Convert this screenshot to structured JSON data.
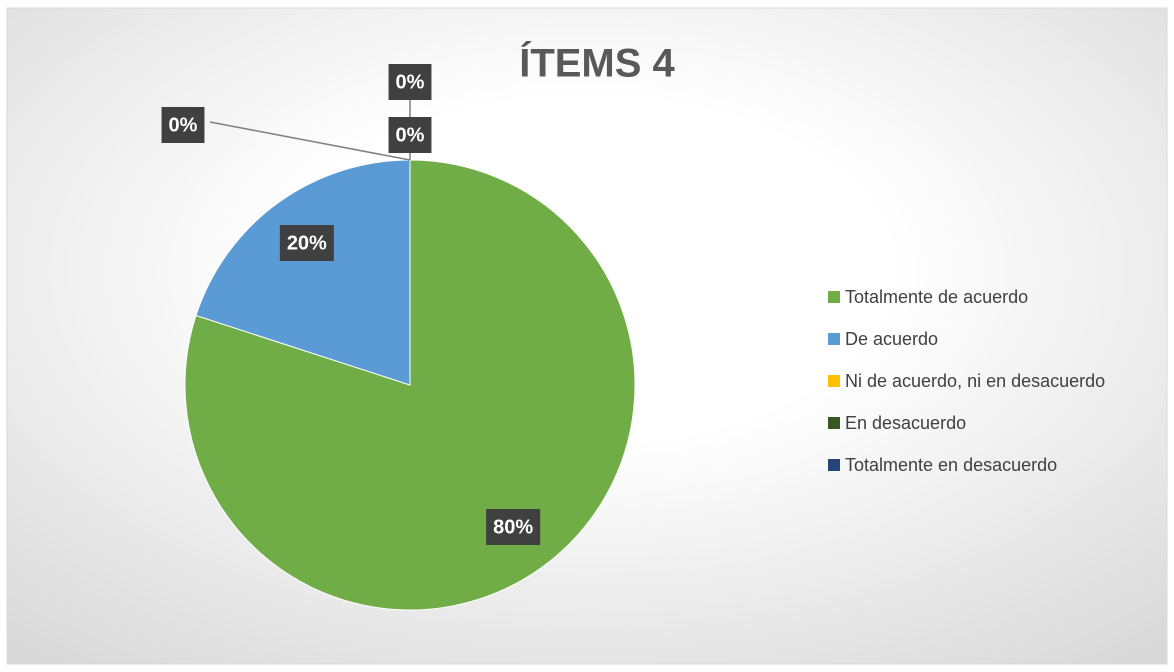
{
  "chart_data": {
    "type": "pie",
    "title": "ÍTEMS 4",
    "categories": [
      "Totalmente de acuerdo",
      "De acuerdo",
      "Ni de acuerdo, ni en desacuerdo",
      "En desacuerdo",
      "Totalmente en desacuerdo"
    ],
    "values": [
      80,
      20,
      0,
      0,
      0
    ],
    "value_labels": [
      "80%",
      "20%",
      "0%",
      "0%",
      "0%"
    ],
    "colors": [
      "#70ad47",
      "#5b9bd5",
      "#ffc000",
      "#375623",
      "#264478"
    ],
    "legend": "right"
  }
}
